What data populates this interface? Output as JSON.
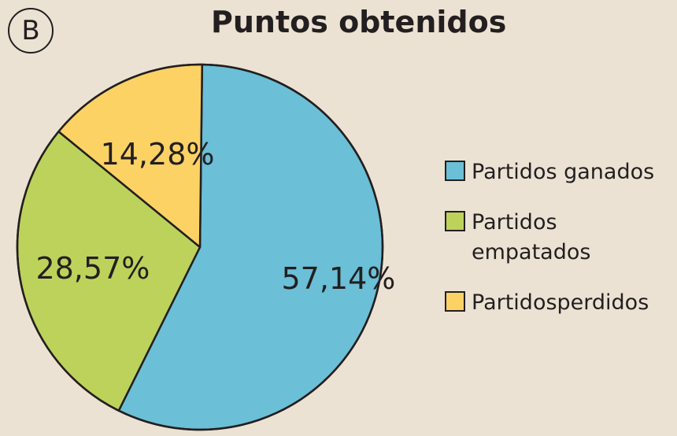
{
  "badge": "B",
  "chart_data": {
    "type": "pie",
    "title": "Puntos obtenidos",
    "slices": [
      {
        "label": "Partidos ganados",
        "value": 57.14,
        "value_label": "57,14%",
        "color": "#6bbfd6"
      },
      {
        "label": "Partidos empatados",
        "value": 28.57,
        "value_label": "28,57%",
        "color": "#bdd25a"
      },
      {
        "label": "Partidosperdidos",
        "value": 14.28,
        "value_label": "14,28%",
        "color": "#fcd265"
      }
    ],
    "legend_position": "right"
  }
}
